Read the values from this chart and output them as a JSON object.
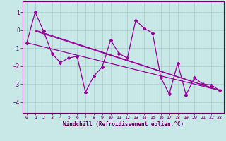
{
  "x": [
    0,
    1,
    2,
    3,
    4,
    5,
    6,
    7,
    8,
    9,
    10,
    11,
    12,
    13,
    14,
    15,
    16,
    17,
    18,
    19,
    20,
    21,
    22,
    23
  ],
  "y_main": [
    -0.7,
    1.0,
    -0.05,
    -1.3,
    -1.8,
    -1.55,
    -1.45,
    -3.45,
    -2.55,
    -2.05,
    -0.55,
    -1.3,
    -1.55,
    0.55,
    0.1,
    -0.15,
    -2.65,
    -3.55,
    -1.85,
    -3.6,
    -2.65,
    -3.0,
    -3.05,
    -3.35
  ],
  "trend_line1_x": [
    1,
    23
  ],
  "trend_line1_y": [
    0.0,
    -3.35
  ],
  "trend_line2_x": [
    1,
    23
  ],
  "trend_line2_y": [
    -0.05,
    -3.35
  ],
  "trend_line3_x": [
    0,
    23
  ],
  "trend_line3_y": [
    -0.7,
    -3.35
  ],
  "xlim": [
    -0.5,
    23.5
  ],
  "ylim": [
    -4.6,
    1.6
  ],
  "yticks": [
    1,
    0,
    -1,
    -2,
    -3,
    -4
  ],
  "xticks": [
    0,
    1,
    2,
    3,
    4,
    5,
    6,
    7,
    8,
    9,
    10,
    11,
    12,
    13,
    14,
    15,
    16,
    17,
    18,
    19,
    20,
    21,
    22,
    23
  ],
  "xlabel": "Windchill (Refroidissement éolien,°C)",
  "line_color": "#990099",
  "bg_color": "#c8e8e8",
  "grid_color": "#a8cccc",
  "axis_color": "#660066"
}
